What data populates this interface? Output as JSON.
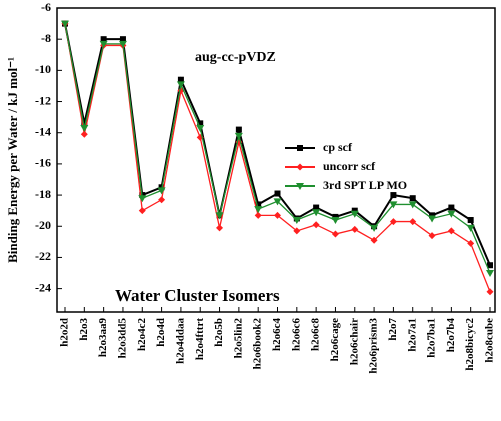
{
  "chart_data": {
    "type": "line",
    "y_label": "Binding Energy per Water / kJ mol⁻¹",
    "annotations": [
      "aug-cc-pVDZ",
      "Water Cluster Isomers"
    ],
    "categories": [
      "h2o2d",
      "h2o3",
      "h2o3aa9",
      "h2o3dd5",
      "h2o4c2",
      "h2o4d",
      "h2o4ddaa",
      "h2o4fttrt",
      "h2o5b",
      "h2o5lin2",
      "h2o6book2",
      "h2o6c4",
      "h2o6c6",
      "h2o6c8",
      "h2o6cage",
      "h2o6chair",
      "h2o6prism3",
      "h2o7",
      "h2o7a1",
      "h2o7ba1",
      "h2o7b4",
      "h2o8bicyc2",
      "h2o8cube"
    ],
    "series": [
      {
        "name": "cp scf",
        "color": "#000000",
        "marker": "square",
        "values": [
          -7.0,
          -13.4,
          -8.0,
          -8.0,
          -18.0,
          -17.5,
          -10.6,
          -13.4,
          -19.3,
          -13.8,
          -18.6,
          -17.9,
          -19.5,
          -18.8,
          -19.4,
          -19.0,
          -20.0,
          -18.0,
          -18.2,
          -19.3,
          -18.8,
          -19.6,
          -22.5
        ]
      },
      {
        "name": "uncorr scf",
        "color": "#ff2020",
        "marker": "diamond",
        "values": [
          -7.0,
          -14.1,
          -8.4,
          -8.4,
          -19.0,
          -18.3,
          -11.3,
          -14.3,
          -20.1,
          -14.6,
          -19.3,
          -19.3,
          -20.3,
          -19.9,
          -20.5,
          -20.2,
          -20.9,
          -19.7,
          -19.7,
          -20.6,
          -20.3,
          -21.1,
          -24.2
        ]
      },
      {
        "name": "3rd SPT LP MO",
        "color": "#1f8f2f",
        "marker": "triangle-down",
        "values": [
          -7.0,
          -13.7,
          -8.3,
          -8.3,
          -18.2,
          -17.7,
          -10.9,
          -13.7,
          -19.3,
          -14.2,
          -18.9,
          -18.4,
          -19.6,
          -19.1,
          -19.6,
          -19.2,
          -20.1,
          -18.6,
          -18.6,
          -19.5,
          -19.2,
          -20.1,
          -23.0
        ]
      }
    ],
    "ylim": [
      -25.5,
      -6
    ],
    "yticks": [
      -24,
      -22,
      -20,
      -18,
      -16,
      -14,
      -12,
      -10,
      -8,
      -6
    ],
    "grid": false,
    "legend": "right"
  }
}
